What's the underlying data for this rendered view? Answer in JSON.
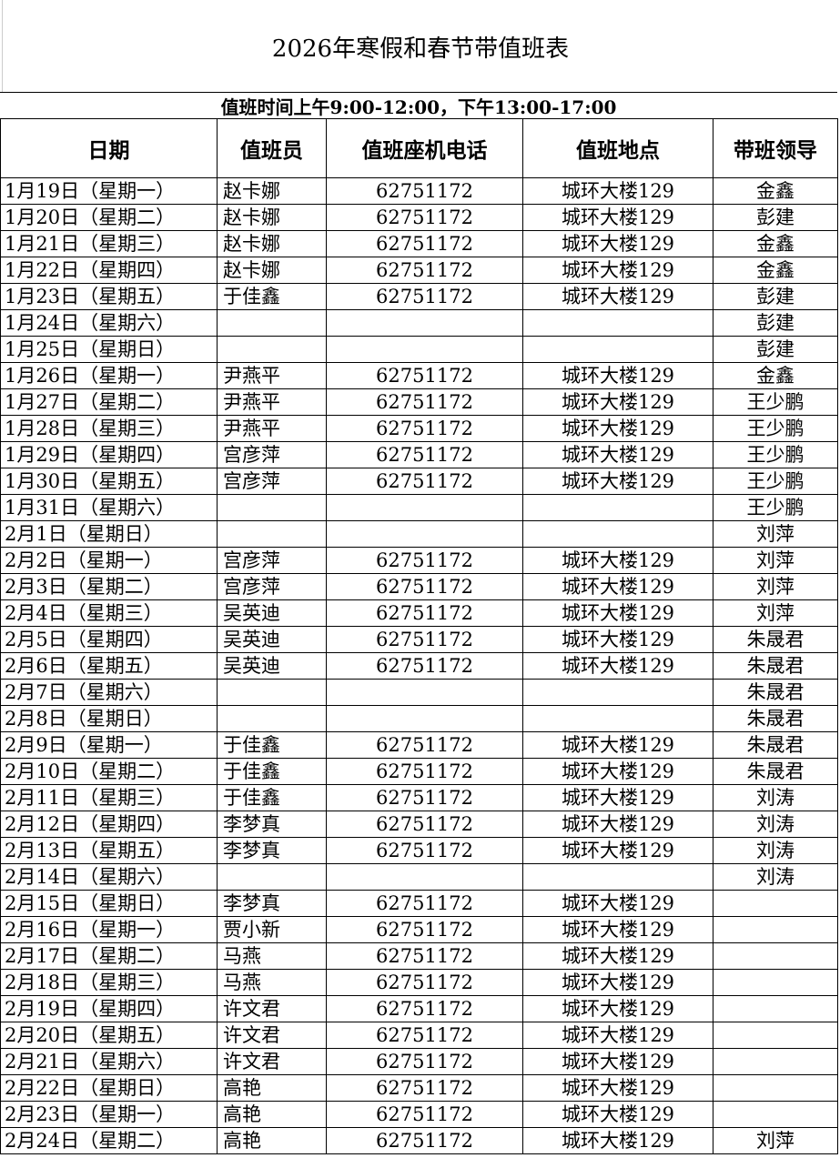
{
  "title": "2026年寒假和春节带值班表",
  "subtitle": "值班时间上午9:00-12:00，下午13:00-17:00",
  "headers": [
    "日期",
    "值班员",
    "值班座机电话",
    "值班地点",
    "带班领导"
  ],
  "rows": [
    [
      "1月19日（星期一）",
      "赵卡娜",
      "62751172",
      "城环大楼129",
      "金鑫"
    ],
    [
      "1月20日（星期二）",
      "赵卡娜",
      "62751172",
      "城环大楼129",
      "彭建"
    ],
    [
      "1月21日（星期三）",
      "赵卡娜",
      "62751172",
      "城环大楼129",
      "金鑫"
    ],
    [
      "1月22日（星期四）",
      "赵卡娜",
      "62751172",
      "城环大楼129",
      "金鑫"
    ],
    [
      "1月23日（星期五）",
      "于佳鑫",
      "62751172",
      "城环大楼129",
      "彭建"
    ],
    [
      "1月24日（星期六）",
      "",
      "",
      "",
      "彭建"
    ],
    [
      "1月25日（星期日）",
      "",
      "",
      "",
      "彭建"
    ],
    [
      "1月26日（星期一）",
      "尹燕平",
      "62751172",
      "城环大楼129",
      "金鑫"
    ],
    [
      "1月27日（星期二）",
      "尹燕平",
      "62751172",
      "城环大楼129",
      "王少鹏"
    ],
    [
      "1月28日（星期三）",
      "尹燕平",
      "62751172",
      "城环大楼129",
      "王少鹏"
    ],
    [
      "1月29日（星期四）",
      "宫彦萍",
      "62751172",
      "城环大楼129",
      "王少鹏"
    ],
    [
      "1月30日（星期五）",
      "宫彦萍",
      "62751172",
      "城环大楼129",
      "王少鹏"
    ],
    [
      "1月31日（星期六）",
      "",
      "",
      "",
      "王少鹏"
    ],
    [
      "2月1日（星期日）",
      "",
      "",
      "",
      "刘萍"
    ],
    [
      "2月2日（星期一）",
      "宫彦萍",
      "62751172",
      "城环大楼129",
      "刘萍"
    ],
    [
      "2月3日（星期二）",
      "宫彦萍",
      "62751172",
      "城环大楼129",
      "刘萍"
    ],
    [
      "2月4日（星期三）",
      "吴英迪",
      "62751172",
      "城环大楼129",
      "刘萍"
    ],
    [
      "2月5日（星期四）",
      "吴英迪",
      "62751172",
      "城环大楼129",
      "朱晟君"
    ],
    [
      "2月6日（星期五）",
      "吴英迪",
      "62751172",
      "城环大楼129",
      "朱晟君"
    ],
    [
      "2月7日（星期六）",
      "",
      "",
      "",
      "朱晟君"
    ],
    [
      "2月8日（星期日）",
      "",
      "",
      "",
      "朱晟君"
    ],
    [
      "2月9日（星期一）",
      "于佳鑫",
      "62751172",
      "城环大楼129",
      "朱晟君"
    ],
    [
      "2月10日（星期二）",
      "于佳鑫",
      "62751172",
      "城环大楼129",
      "朱晟君"
    ],
    [
      "2月11日（星期三）",
      "于佳鑫",
      "62751172",
      "城环大楼129",
      "刘涛"
    ],
    [
      "2月12日（星期四）",
      "李梦真",
      "62751172",
      "城环大楼129",
      "刘涛"
    ],
    [
      "2月13日（星期五）",
      "李梦真",
      "62751172",
      "城环大楼129",
      "刘涛"
    ],
    [
      "2月14日（星期六）",
      "",
      "",
      "",
      "刘涛"
    ],
    [
      "2月15日（星期日）",
      "李梦真",
      "62751172",
      "城环大楼129",
      ""
    ],
    [
      "2月16日（星期一）",
      "贾小新",
      "62751172",
      "城环大楼129",
      ""
    ],
    [
      "2月17日（星期二）",
      "马燕",
      "62751172",
      "城环大楼129",
      ""
    ],
    [
      "2月18日（星期三）",
      "马燕",
      "62751172",
      "城环大楼129",
      ""
    ],
    [
      "2月19日（星期四）",
      "许文君",
      "62751172",
      "城环大楼129",
      ""
    ],
    [
      "2月20日（星期五）",
      "许文君",
      "62751172",
      "城环大楼129",
      ""
    ],
    [
      "2月21日（星期六）",
      "许文君",
      "62751172",
      "城环大楼129",
      ""
    ],
    [
      "2月22日（星期日）",
      "高艳",
      "62751172",
      "城环大楼129",
      ""
    ],
    [
      "2月23日（星期一）",
      "高艳",
      "62751172",
      "城环大楼129",
      ""
    ],
    [
      "2月24日（星期二）",
      "高艳",
      "62751172",
      "城环大楼129",
      "刘萍"
    ]
  ]
}
